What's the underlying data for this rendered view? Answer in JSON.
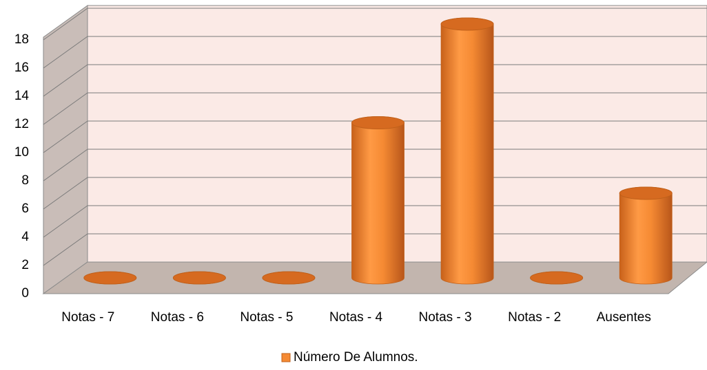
{
  "chart_data": {
    "type": "bar",
    "categories": [
      "Notas - 7",
      "Notas - 6",
      "Notas - 5",
      "Notas - 4",
      "Notas - 3",
      "Notas - 2",
      "Ausentes"
    ],
    "series": [
      {
        "name": "Número De Alumnos.",
        "color": "#f58a33",
        "values": [
          0,
          0,
          0,
          11,
          18,
          0,
          6
        ]
      }
    ],
    "ylim": [
      0,
      18
    ],
    "yticks": [
      0,
      2,
      4,
      6,
      8,
      10,
      12,
      14,
      16,
      18
    ],
    "grid": true,
    "legend": "bottom"
  }
}
